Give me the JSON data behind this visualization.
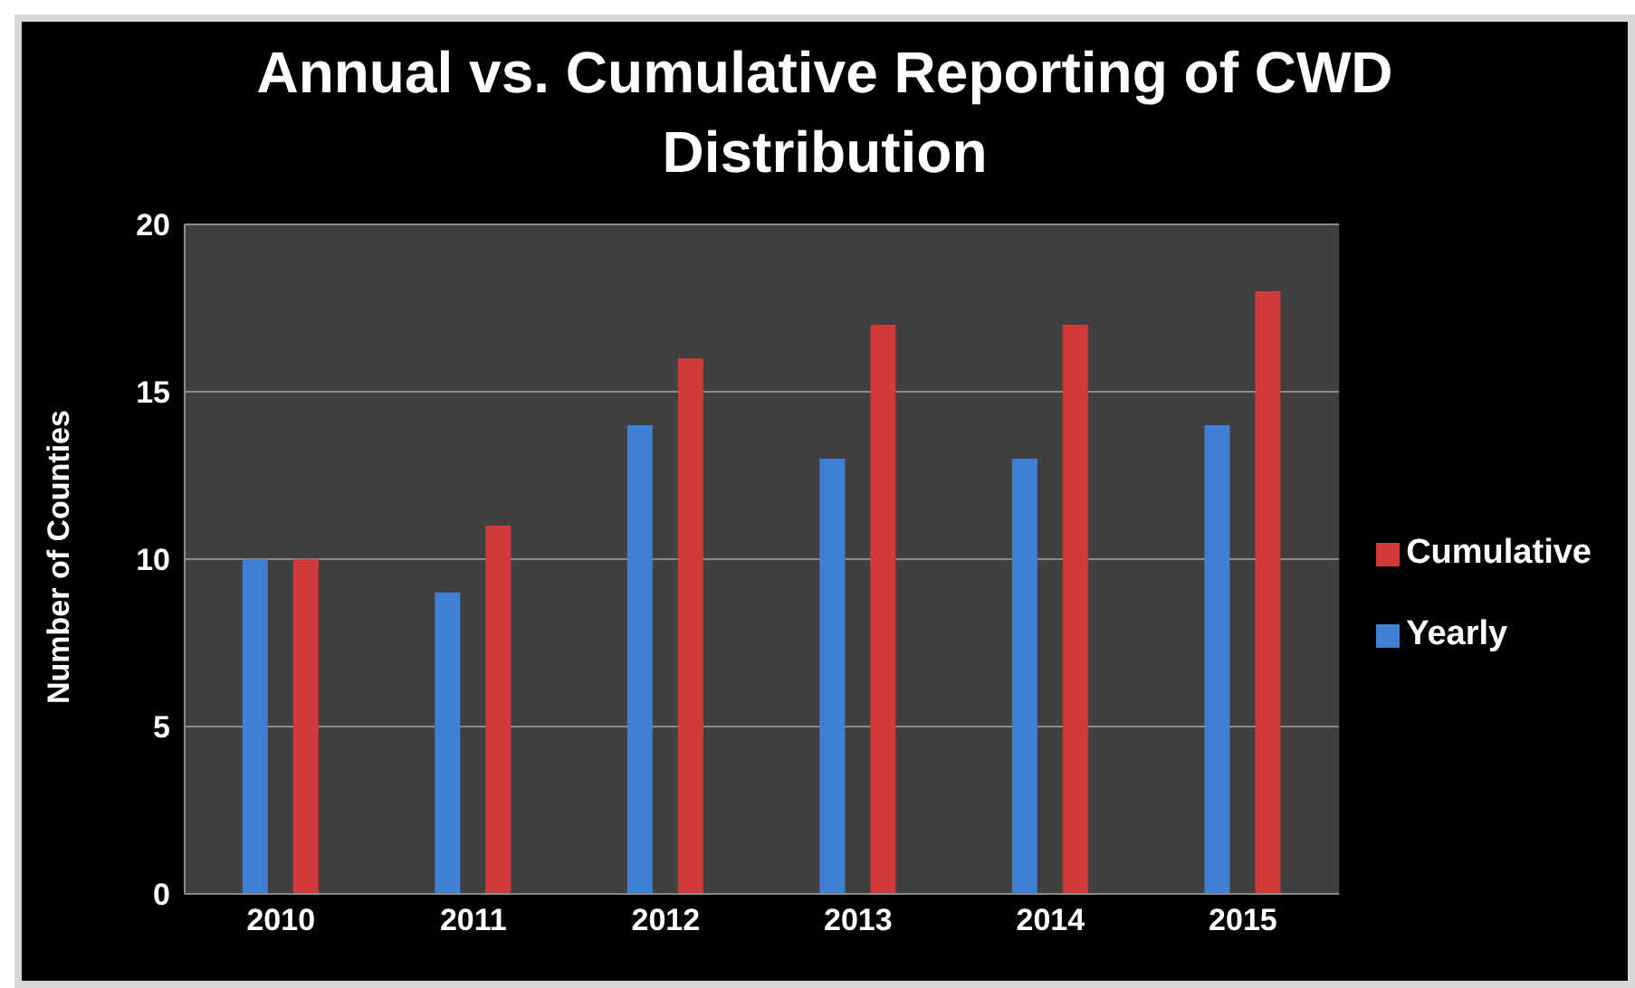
{
  "chart_data": {
    "type": "bar",
    "title": "Annual vs. Cumulative Reporting of CWD Distribution",
    "ylabel": "Number of Counties",
    "categories": [
      "2010",
      "2011",
      "2012",
      "2013",
      "2014",
      "2015"
    ],
    "series": [
      {
        "name": "Yearly",
        "color": "#3f7fd4",
        "values": [
          10,
          9,
          14,
          13,
          13,
          14
        ]
      },
      {
        "name": "Cumulative",
        "color": "#d03a3a",
        "values": [
          10,
          11,
          16,
          17,
          17,
          18
        ]
      }
    ],
    "ylim": [
      0,
      20
    ],
    "yticks": [
      0,
      5,
      10,
      15,
      20
    ],
    "grid": "y",
    "legend": "right"
  }
}
